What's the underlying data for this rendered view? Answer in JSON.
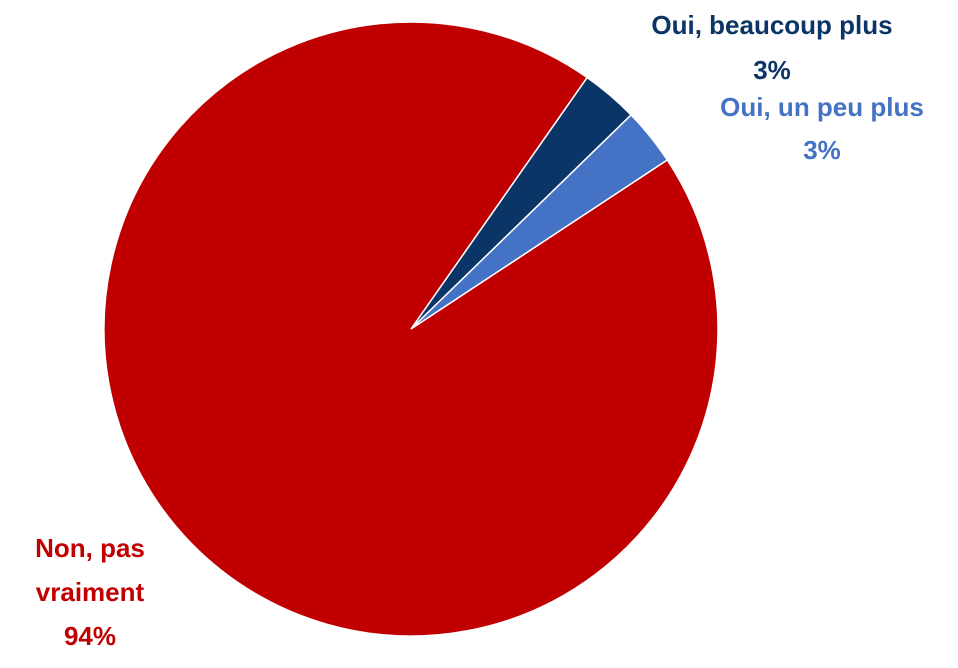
{
  "chart_data": {
    "type": "pie",
    "categories": [
      "Oui, beaucoup plus",
      "Oui, un peu plus",
      "Non, pas vraiment"
    ],
    "values": [
      3,
      3,
      94
    ],
    "value_labels": [
      "3%",
      "3%",
      "94%"
    ],
    "colors": [
      "#0a3566",
      "#4472c4",
      "#c00000"
    ]
  }
}
